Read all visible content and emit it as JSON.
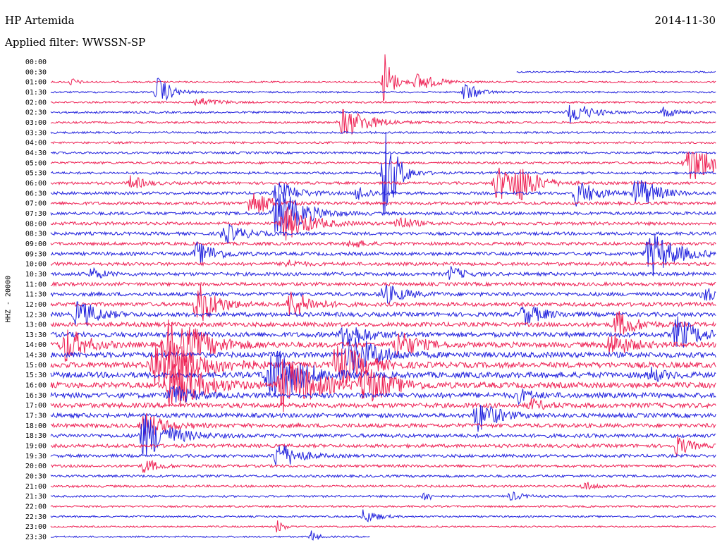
{
  "header": {
    "station": "HP Artemida",
    "filter": "Applied filter: WWSSN-SP",
    "date": "2014-11-30"
  },
  "channel_label": "HHZ - 20000",
  "chart_data": {
    "type": "helicorder",
    "colors": {
      "even_row": "#2222dd",
      "odd_row": "#ee2255"
    },
    "row_labels": [
      "00:00",
      "00:30",
      "01:00",
      "01:30",
      "02:00",
      "02:30",
      "03:00",
      "03:30",
      "04:00",
      "04:30",
      "05:00",
      "05:30",
      "06:00",
      "06:30",
      "07:00",
      "07:30",
      "08:00",
      "08:30",
      "09:00",
      "09:30",
      "10:00",
      "10:30",
      "11:00",
      "11:30",
      "12:00",
      "12:30",
      "13:00",
      "13:30",
      "14:00",
      "14:30",
      "15:00",
      "15:30",
      "16:00",
      "16:30",
      "17:00",
      "17:30",
      "18:00",
      "18:30",
      "19:00",
      "19:30",
      "20:00",
      "20:30",
      "21:00",
      "21:30",
      "22:00",
      "22:30",
      "23:00",
      "23:30"
    ],
    "row_noise": [
      0.5,
      0.6,
      0.6,
      0.7,
      0.8,
      0.8,
      0.8,
      0.8,
      0.9,
      1.0,
      1.1,
      1.3,
      1.4,
      1.5,
      1.6,
      1.6,
      1.6,
      1.6,
      1.7,
      1.7,
      1.8,
      1.8,
      2.0,
      2.1,
      2.3,
      2.4,
      2.8,
      3.0,
      3.2,
      3.3,
      3.4,
      3.3,
      3.0,
      2.7,
      2.4,
      2.2,
      2.0,
      1.8,
      1.5,
      1.3,
      1.1,
      1.0,
      0.8,
      0.7,
      0.6,
      0.5,
      0.5,
      0.0
    ],
    "row_coverage": [
      [
        0.7,
        1
      ],
      [
        0,
        1
      ],
      [
        0,
        1
      ],
      [
        0,
        1
      ],
      [
        0,
        1
      ],
      [
        0,
        1
      ],
      [
        0,
        1
      ],
      [
        0,
        1
      ],
      [
        0,
        1
      ],
      [
        0,
        1
      ],
      [
        0,
        1
      ],
      [
        0,
        1
      ],
      [
        0,
        1
      ],
      [
        0,
        1
      ],
      [
        0,
        1
      ],
      [
        0,
        1
      ],
      [
        0,
        1
      ],
      [
        0,
        1
      ],
      [
        0,
        1
      ],
      [
        0,
        1
      ],
      [
        0,
        1
      ],
      [
        0,
        1
      ],
      [
        0,
        1
      ],
      [
        0,
        1
      ],
      [
        0,
        1
      ],
      [
        0,
        1
      ],
      [
        0,
        1
      ],
      [
        0,
        1
      ],
      [
        0,
        1
      ],
      [
        0,
        1
      ],
      [
        0,
        1
      ],
      [
        0,
        1
      ],
      [
        0,
        1
      ],
      [
        0,
        1
      ],
      [
        0,
        1
      ],
      [
        0,
        1
      ],
      [
        0,
        1
      ],
      [
        0,
        1
      ],
      [
        0,
        1
      ],
      [
        0,
        1
      ],
      [
        0,
        1
      ],
      [
        0,
        1
      ],
      [
        0,
        1
      ],
      [
        0,
        1
      ],
      [
        0,
        1
      ],
      [
        0,
        1
      ],
      [
        0,
        0.48
      ],
      [
        0,
        0
      ]
    ],
    "events": [
      {
        "row": 1,
        "t": 0.03,
        "amp": 6,
        "dur": 0.01
      },
      {
        "row": 1,
        "t": 0.5,
        "amp": 10,
        "dur": 0.02
      },
      {
        "row": 1,
        "t": 0.55,
        "amp": 12,
        "dur": 0.03
      },
      {
        "row": 2,
        "t": 0.16,
        "amp": 22,
        "dur": 0.02
      },
      {
        "row": 2,
        "t": 0.62,
        "amp": 14,
        "dur": 0.02
      },
      {
        "row": 3,
        "t": 0.22,
        "amp": 6,
        "dur": 0.03
      },
      {
        "row": 4,
        "t": 0.78,
        "amp": 16,
        "dur": 0.03
      },
      {
        "row": 4,
        "t": 0.92,
        "amp": 8,
        "dur": 0.02
      },
      {
        "row": 5,
        "t": 0.44,
        "amp": 20,
        "dur": 0.04
      },
      {
        "row": 1,
        "t": 0.5,
        "amp": 40,
        "dur": 0.01
      },
      {
        "row": 10,
        "t": 0.5,
        "amp": 70,
        "dur": 0.02
      },
      {
        "row": 9,
        "t": 0.96,
        "amp": 26,
        "dur": 0.05
      },
      {
        "row": 11,
        "t": 0.12,
        "amp": 10,
        "dur": 0.02
      },
      {
        "row": 11,
        "t": 0.67,
        "amp": 26,
        "dur": 0.03
      },
      {
        "row": 11,
        "t": 0.7,
        "amp": 22,
        "dur": 0.03
      },
      {
        "row": 12,
        "t": 0.34,
        "amp": 16,
        "dur": 0.03
      },
      {
        "row": 12,
        "t": 0.46,
        "amp": 10,
        "dur": 0.02
      },
      {
        "row": 12,
        "t": 0.79,
        "amp": 18,
        "dur": 0.03
      },
      {
        "row": 12,
        "t": 0.88,
        "amp": 24,
        "dur": 0.03
      },
      {
        "row": 13,
        "t": 0.3,
        "amp": 18,
        "dur": 0.03
      },
      {
        "row": 14,
        "t": 0.34,
        "amp": 34,
        "dur": 0.04
      },
      {
        "row": 15,
        "t": 0.35,
        "amp": 24,
        "dur": 0.04
      },
      {
        "row": 15,
        "t": 0.52,
        "amp": 12,
        "dur": 0.02
      },
      {
        "row": 16,
        "t": 0.26,
        "amp": 14,
        "dur": 0.03
      },
      {
        "row": 17,
        "t": 0.45,
        "amp": 6,
        "dur": 0.02
      },
      {
        "row": 18,
        "t": 0.22,
        "amp": 16,
        "dur": 0.03
      },
      {
        "row": 18,
        "t": 0.9,
        "amp": 30,
        "dur": 0.04
      },
      {
        "row": 19,
        "t": 0.35,
        "amp": 6,
        "dur": 0.02
      },
      {
        "row": 20,
        "t": 0.06,
        "amp": 8,
        "dur": 0.02
      },
      {
        "row": 20,
        "t": 0.6,
        "amp": 10,
        "dur": 0.02
      },
      {
        "row": 22,
        "t": 0.5,
        "amp": 14,
        "dur": 0.03
      },
      {
        "row": 22,
        "t": 0.98,
        "amp": 10,
        "dur": 0.02
      },
      {
        "row": 23,
        "t": 0.22,
        "amp": 30,
        "dur": 0.03
      },
      {
        "row": 23,
        "t": 0.36,
        "amp": 20,
        "dur": 0.03
      },
      {
        "row": 24,
        "t": 0.04,
        "amp": 20,
        "dur": 0.03
      },
      {
        "row": 24,
        "t": 0.71,
        "amp": 14,
        "dur": 0.03
      },
      {
        "row": 25,
        "t": 0.85,
        "amp": 18,
        "dur": 0.03
      },
      {
        "row": 26,
        "t": 0.94,
        "amp": 24,
        "dur": 0.03
      },
      {
        "row": 26,
        "t": 0.44,
        "amp": 20,
        "dur": 0.03
      },
      {
        "row": 27,
        "t": 0.02,
        "amp": 26,
        "dur": 0.03
      },
      {
        "row": 27,
        "t": 0.18,
        "amp": 40,
        "dur": 0.05
      },
      {
        "row": 27,
        "t": 0.52,
        "amp": 20,
        "dur": 0.03
      },
      {
        "row": 27,
        "t": 0.84,
        "amp": 16,
        "dur": 0.03
      },
      {
        "row": 28,
        "t": 0.45,
        "amp": 28,
        "dur": 0.04
      },
      {
        "row": 29,
        "t": 0.16,
        "amp": 42,
        "dur": 0.06
      },
      {
        "row": 29,
        "t": 0.43,
        "amp": 30,
        "dur": 0.04
      },
      {
        "row": 30,
        "t": 0.33,
        "amp": 38,
        "dur": 0.05
      },
      {
        "row": 30,
        "t": 0.9,
        "amp": 10,
        "dur": 0.02
      },
      {
        "row": 31,
        "t": 0.18,
        "amp": 34,
        "dur": 0.05
      },
      {
        "row": 31,
        "t": 0.35,
        "amp": 36,
        "dur": 0.05
      },
      {
        "row": 31,
        "t": 0.47,
        "amp": 26,
        "dur": 0.04
      },
      {
        "row": 32,
        "t": 0.18,
        "amp": 14,
        "dur": 0.03
      },
      {
        "row": 32,
        "t": 0.7,
        "amp": 10,
        "dur": 0.02
      },
      {
        "row": 33,
        "t": 0.72,
        "amp": 8,
        "dur": 0.02
      },
      {
        "row": 34,
        "t": 0.64,
        "amp": 22,
        "dur": 0.03
      },
      {
        "row": 35,
        "t": 0.14,
        "amp": 18,
        "dur": 0.03
      },
      {
        "row": 36,
        "t": 0.14,
        "amp": 30,
        "dur": 0.04
      },
      {
        "row": 37,
        "t": 0.94,
        "amp": 14,
        "dur": 0.02
      },
      {
        "row": 38,
        "t": 0.34,
        "amp": 20,
        "dur": 0.03
      },
      {
        "row": 39,
        "t": 0.14,
        "amp": 10,
        "dur": 0.02
      },
      {
        "row": 41,
        "t": 0.8,
        "amp": 6,
        "dur": 0.02
      },
      {
        "row": 42,
        "t": 0.56,
        "amp": 10,
        "dur": 0.01
      },
      {
        "row": 42,
        "t": 0.69,
        "amp": 6,
        "dur": 0.02
      },
      {
        "row": 44,
        "t": 0.47,
        "amp": 10,
        "dur": 0.02
      },
      {
        "row": 45,
        "t": 0.34,
        "amp": 10,
        "dur": 0.01
      },
      {
        "row": 46,
        "t": 0.39,
        "amp": 10,
        "dur": 0.01
      }
    ]
  }
}
